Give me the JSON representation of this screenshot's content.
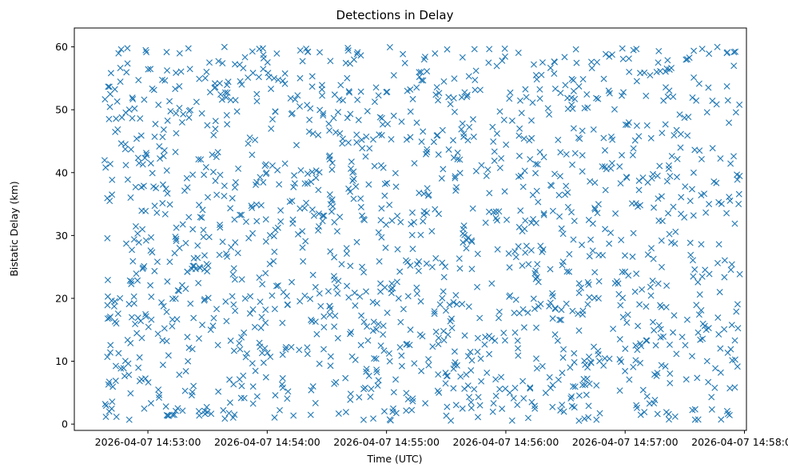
{
  "chart_data": {
    "type": "scatter",
    "title": "Detections in Delay",
    "xlabel": "Time (UTC)",
    "ylabel": "Bistatic Delay (km)",
    "marker": "x",
    "color": "#1f77b4",
    "grid": false,
    "legend": "none",
    "xlim": [
      "2026-04-07 14:52:23",
      "2026-04-07 14:58:01"
    ],
    "ylim": [
      -1,
      63
    ],
    "xticks": [
      "2026-04-07 14:53:00",
      "2026-04-07 14:54:00",
      "2026-04-07 14:55:00",
      "2026-04-07 14:56:00",
      "2026-04-07 14:57:00",
      "2026-04-07 14:58:00"
    ],
    "yticks": [
      0,
      10,
      20,
      30,
      40,
      50,
      60
    ],
    "x_start": "2026-04-07 14:52:38",
    "x_end": "2026-04-07 14:57:58",
    "y_range": [
      0.5,
      60
    ],
    "point_count": 1600
  }
}
